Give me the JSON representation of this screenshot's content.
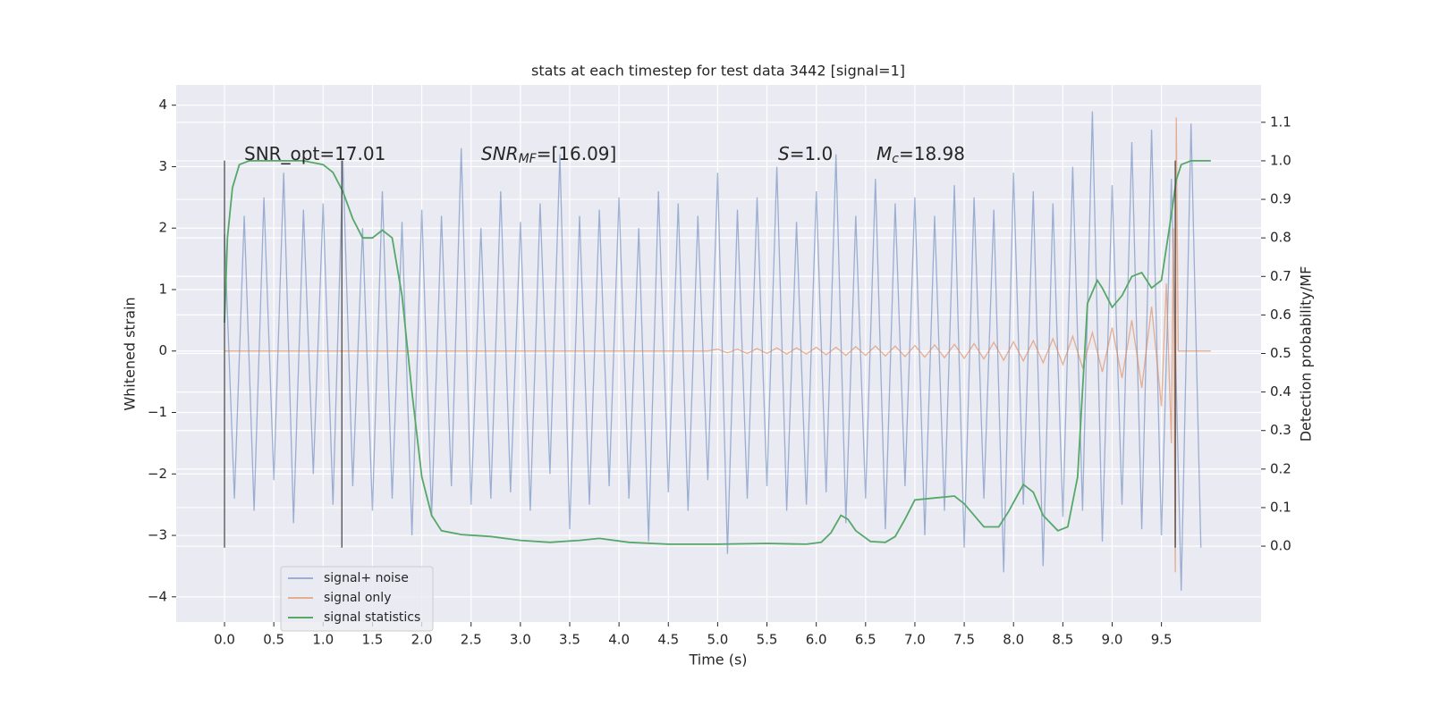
{
  "chart_data": {
    "type": "line",
    "title": "stats at each timestep for test data 3442 [signal=1]",
    "xlabel": "Time (s)",
    "ylabel": "Whitened strain",
    "y2label": "Detection probability/MF",
    "xlim": [
      -0.49,
      10.51
    ],
    "ylim": [
      -4.41,
      4.33
    ],
    "y2lim": [
      -0.197,
      1.197
    ],
    "xticks": [
      {
        "value": 0,
        "label": "0.0"
      },
      0.5,
      {
        "value": 1,
        "label": "1.0"
      },
      1.5,
      {
        "value": 2,
        "label": "2.0"
      },
      2.5,
      {
        "value": 3,
        "label": "3.0"
      },
      3.5,
      {
        "value": 4,
        "label": "4.0"
      },
      4.5,
      {
        "value": 5,
        "label": "5.0"
      },
      5.5,
      {
        "value": 6,
        "label": "6.0"
      },
      6.5,
      {
        "value": 7,
        "label": "7.0"
      },
      7.5,
      {
        "value": 8,
        "label": "8.0"
      },
      8.5,
      {
        "value": 9,
        "label": "9.0"
      },
      9.5
    ],
    "yticks": [
      {
        "value": -4,
        "label": "−4"
      },
      {
        "value": -3,
        "label": "−3"
      },
      {
        "value": -2,
        "label": "−2"
      },
      {
        "value": -1,
        "label": "−1"
      },
      0,
      1,
      2,
      3,
      4
    ],
    "y2ticks": [
      {
        "value": 0,
        "label": "0.0"
      },
      0.1,
      0.2,
      0.3,
      0.4,
      0.5,
      0.6,
      0.7,
      0.8,
      0.9,
      {
        "value": 1,
        "label": "1.0"
      },
      1.1
    ],
    "grid": true,
    "legend": "lower left",
    "series": [
      {
        "name": "signal+ noise",
        "color": "#4c72b0",
        "axis": "y",
        "x": [
          0,
          0.1,
          0.2,
          0.3,
          0.4,
          0.5,
          0.6,
          0.7,
          0.8,
          0.9,
          1,
          1.1,
          1.2,
          1.3,
          1.4,
          1.5,
          1.6,
          1.7,
          1.8,
          1.9,
          2,
          2.1,
          2.2,
          2.3,
          2.4,
          2.5,
          2.6,
          2.7,
          2.8,
          2.9,
          3,
          3.1,
          3.2,
          3.3,
          3.4,
          3.5,
          3.6,
          3.7,
          3.8,
          3.9,
          4,
          4.1,
          4.2,
          4.3,
          4.4,
          4.5,
          4.6,
          4.7,
          4.8,
          4.9,
          5,
          5.1,
          5.2,
          5.3,
          5.4,
          5.5,
          5.6,
          5.7,
          5.8,
          5.9,
          6,
          6.1,
          6.2,
          6.3,
          6.4,
          6.5,
          6.6,
          6.7,
          6.8,
          6.9,
          7,
          7.1,
          7.2,
          7.3,
          7.4,
          7.5,
          7.6,
          7.7,
          7.8,
          7.9,
          8,
          8.1,
          8.2,
          8.3,
          8.4,
          8.5,
          8.6,
          8.7,
          8.8,
          8.9,
          9,
          9.1,
          9.2,
          9.3,
          9.4,
          9.5,
          9.6,
          9.7,
          9.8,
          9.9
        ],
        "values": [
          1.9,
          -2.4,
          2.2,
          -2.6,
          2.5,
          -2.1,
          2.9,
          -2.8,
          2.3,
          -2.0,
          2.4,
          -2.5,
          3.1,
          -2.2,
          2.0,
          -2.6,
          2.6,
          -2.4,
          2.1,
          -3.0,
          2.3,
          -2.7,
          2.2,
          -2.2,
          3.3,
          -2.5,
          2.0,
          -2.4,
          2.6,
          -2.3,
          2.1,
          -2.6,
          2.4,
          -2.0,
          3.2,
          -2.9,
          2.2,
          -2.5,
          2.3,
          -2.2,
          2.5,
          -2.4,
          2.0,
          -3.1,
          2.6,
          -2.3,
          2.4,
          -2.6,
          2.2,
          -2.1,
          2.9,
          -3.3,
          2.3,
          -2.4,
          2.5,
          -2.2,
          3.0,
          -2.6,
          2.1,
          -2.5,
          2.6,
          -2.3,
          3.2,
          -2.8,
          2.2,
          -2.4,
          2.8,
          -2.9,
          2.4,
          -2.2,
          2.5,
          -3.0,
          2.2,
          -2.6,
          2.7,
          -3.2,
          2.5,
          -2.4,
          2.3,
          -3.6,
          2.9,
          -2.5,
          2.6,
          -3.5,
          2.4,
          -2.7,
          3.0,
          -2.6,
          3.9,
          -3.1,
          2.7,
          -2.5,
          3.4,
          -2.9,
          3.6,
          -3.0,
          2.8,
          -3.9,
          3.7,
          -3.2
        ]
      },
      {
        "name": "signal only",
        "color": "#dd8452",
        "axis": "y",
        "x": [
          0,
          4.9,
          5,
          5.1,
          5.2,
          5.3,
          5.4,
          5.5,
          5.6,
          5.7,
          5.8,
          5.9,
          6,
          6.1,
          6.2,
          6.3,
          6.4,
          6.5,
          6.6,
          6.7,
          6.8,
          6.9,
          7,
          7.1,
          7.2,
          7.3,
          7.4,
          7.5,
          7.6,
          7.7,
          7.8,
          7.9,
          8,
          8.1,
          8.2,
          8.3,
          8.4,
          8.5,
          8.6,
          8.7,
          8.8,
          8.9,
          9,
          9.1,
          9.2,
          9.3,
          9.4,
          9.5,
          9.55,
          9.6,
          9.62,
          9.64,
          9.65,
          9.67,
          10
        ],
        "values": [
          0,
          0,
          0.03,
          -0.03,
          0.03,
          -0.04,
          0.04,
          -0.04,
          0.05,
          -0.05,
          0.05,
          -0.05,
          0.06,
          -0.06,
          0.06,
          -0.07,
          0.07,
          -0.07,
          0.08,
          -0.08,
          0.08,
          -0.09,
          0.09,
          -0.1,
          0.1,
          -0.11,
          0.11,
          -0.12,
          0.12,
          -0.13,
          0.14,
          -0.15,
          0.15,
          -0.16,
          0.17,
          -0.19,
          0.2,
          -0.22,
          0.24,
          -0.27,
          0.3,
          -0.34,
          0.38,
          -0.44,
          0.5,
          -0.6,
          0.72,
          -0.9,
          1.1,
          -1.5,
          2.0,
          -3.6,
          3.8,
          0,
          0
        ]
      },
      {
        "name": "signal statistics",
        "color": "#55a868",
        "axis": "y2",
        "x": [
          0,
          0.03,
          0.08,
          0.15,
          0.25,
          0.5,
          0.8,
          1,
          1.1,
          1.2,
          1.3,
          1.4,
          1.5,
          1.6,
          1.7,
          1.8,
          1.9,
          2,
          2.1,
          2.2,
          2.4,
          2.7,
          3,
          3.3,
          3.6,
          3.8,
          4.1,
          4.5,
          5,
          5.5,
          5.9,
          6.05,
          6.15,
          6.25,
          6.32,
          6.4,
          6.55,
          6.7,
          6.8,
          6.9,
          7,
          7.2,
          7.4,
          7.5,
          7.7,
          7.85,
          7.95,
          8.1,
          8.2,
          8.3,
          8.45,
          8.55,
          8.65,
          8.75,
          8.85,
          8.9,
          9,
          9.1,
          9.2,
          9.3,
          9.4,
          9.5,
          9.6,
          9.65,
          9.7,
          9.8,
          10
        ],
        "values": [
          0.58,
          0.8,
          0.93,
          0.99,
          1.0,
          1.0,
          1.0,
          0.99,
          0.97,
          0.92,
          0.85,
          0.8,
          0.8,
          0.82,
          0.8,
          0.65,
          0.4,
          0.18,
          0.08,
          0.04,
          0.03,
          0.025,
          0.015,
          0.01,
          0.015,
          0.02,
          0.01,
          0.005,
          0.005,
          0.007,
          0.005,
          0.01,
          0.035,
          0.08,
          0.07,
          0.04,
          0.012,
          0.01,
          0.025,
          0.07,
          0.12,
          0.125,
          0.13,
          0.11,
          0.05,
          0.05,
          0.09,
          0.16,
          0.14,
          0.08,
          0.04,
          0.05,
          0.18,
          0.63,
          0.69,
          0.67,
          0.62,
          0.65,
          0.7,
          0.71,
          0.67,
          0.69,
          0.86,
          0.95,
          0.99,
          1.0,
          1.0
        ]
      }
    ],
    "vlines": [
      {
        "x": 0,
        "ymin": -3.2,
        "ymax": 3.1
      },
      {
        "x": 1.19,
        "ymin": -3.2,
        "ymax": 3.1
      },
      {
        "x": 9.64,
        "ymin": -3.2,
        "ymax": 3.1
      }
    ],
    "annotations": [
      {
        "text": "SNR_opt=17.01"
      },
      {
        "main": "SNR",
        "sub": "MF",
        "rest": "=[16.09]"
      },
      {
        "main": "S",
        "rest": "=1.0"
      },
      {
        "main": "M",
        "sub": "c",
        "rest": "=18.98"
      }
    ]
  }
}
